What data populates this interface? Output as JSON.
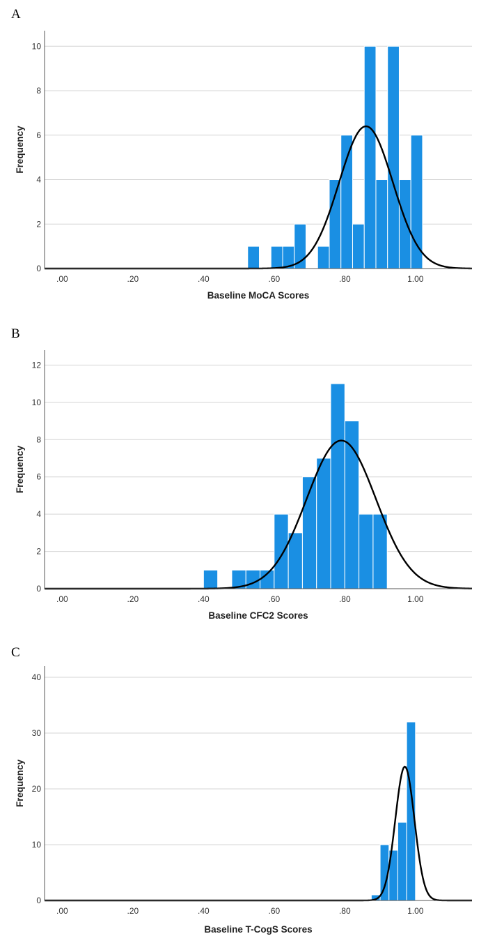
{
  "panels": [
    "A",
    "B",
    "C"
  ],
  "chart_data": [
    {
      "type": "bar",
      "subtype": "histogram",
      "panel": "A",
      "xlabel": "Baseline MoCA Scores",
      "ylabel": "Frequency",
      "xlim": [
        -0.05,
        1.16
      ],
      "ylim": [
        0,
        10.7
      ],
      "yticks": [
        0,
        2,
        4,
        6,
        8,
        10
      ],
      "ytick_labels": [
        "0",
        "2",
        "4",
        "6",
        "8",
        "10"
      ],
      "xticks": [
        0,
        0.2,
        0.4,
        0.6,
        0.8,
        1.0
      ],
      "xtick_labels": [
        ".00",
        ".20",
        ".40",
        ".60",
        ".80",
        "1.00"
      ],
      "grid": true,
      "bar_color": "#1a8fe3",
      "curve_color": "#000000",
      "bins": [
        {
          "start": 0.525,
          "end": 0.558,
          "count": 1
        },
        {
          "start": 0.591,
          "end": 0.624,
          "count": 1
        },
        {
          "start": 0.624,
          "end": 0.657,
          "count": 1
        },
        {
          "start": 0.657,
          "end": 0.69,
          "count": 2
        },
        {
          "start": 0.723,
          "end": 0.756,
          "count": 1
        },
        {
          "start": 0.756,
          "end": 0.789,
          "count": 4
        },
        {
          "start": 0.789,
          "end": 0.822,
          "count": 6
        },
        {
          "start": 0.822,
          "end": 0.855,
          "count": 2
        },
        {
          "start": 0.855,
          "end": 0.888,
          "count": 10
        },
        {
          "start": 0.888,
          "end": 0.921,
          "count": 4
        },
        {
          "start": 0.921,
          "end": 0.954,
          "count": 10
        },
        {
          "start": 0.954,
          "end": 0.987,
          "count": 4
        },
        {
          "start": 0.987,
          "end": 1.02,
          "count": 6
        }
      ],
      "normal_curve": {
        "mean": 0.86,
        "sd": 0.076,
        "peak": 6.4
      }
    },
    {
      "type": "bar",
      "subtype": "histogram",
      "panel": "B",
      "xlabel": "Baseline CFC2 Scores",
      "ylabel": "Frequency",
      "xlim": [
        -0.05,
        1.16
      ],
      "ylim": [
        0,
        12.8
      ],
      "yticks": [
        0,
        2,
        4,
        6,
        8,
        10,
        12
      ],
      "ytick_labels": [
        "0",
        "2",
        "4",
        "6",
        "8",
        "10",
        "12"
      ],
      "xticks": [
        0,
        0.2,
        0.4,
        0.6,
        0.8,
        1.0
      ],
      "xtick_labels": [
        ".00",
        ".20",
        ".40",
        ".60",
        ".80",
        "1.00"
      ],
      "grid": true,
      "bar_color": "#1a8fe3",
      "curve_color": "#000000",
      "bins": [
        {
          "start": 0.4,
          "end": 0.44,
          "count": 1
        },
        {
          "start": 0.48,
          "end": 0.52,
          "count": 1
        },
        {
          "start": 0.52,
          "end": 0.56,
          "count": 1
        },
        {
          "start": 0.56,
          "end": 0.6,
          "count": 1
        },
        {
          "start": 0.6,
          "end": 0.64,
          "count": 4
        },
        {
          "start": 0.64,
          "end": 0.68,
          "count": 3
        },
        {
          "start": 0.68,
          "end": 0.72,
          "count": 6
        },
        {
          "start": 0.72,
          "end": 0.76,
          "count": 7
        },
        {
          "start": 0.76,
          "end": 0.8,
          "count": 11
        },
        {
          "start": 0.8,
          "end": 0.84,
          "count": 9
        },
        {
          "start": 0.84,
          "end": 0.88,
          "count": 4
        },
        {
          "start": 0.88,
          "end": 0.92,
          "count": 4
        }
      ],
      "normal_curve": {
        "mean": 0.79,
        "sd": 0.098,
        "peak": 7.95
      }
    },
    {
      "type": "bar",
      "subtype": "histogram",
      "panel": "C",
      "xlabel": "Baseline T-CogS Scores",
      "ylabel": "Frequency",
      "xlim": [
        -0.05,
        1.16
      ],
      "ylim": [
        0,
        42
      ],
      "yticks": [
        0,
        10,
        20,
        30,
        40
      ],
      "ytick_labels": [
        "0",
        "10",
        "20",
        "30",
        "40"
      ],
      "xticks": [
        0,
        0.2,
        0.4,
        0.6,
        0.8,
        1.0
      ],
      "xtick_labels": [
        ".00",
        ".20",
        ".40",
        ".60",
        ".80",
        "1.00"
      ],
      "grid": true,
      "bar_color": "#1a8fe3",
      "curve_color": "#000000",
      "bins": [
        {
          "start": 0.875,
          "end": 0.9,
          "count": 1
        },
        {
          "start": 0.9,
          "end": 0.925,
          "count": 10
        },
        {
          "start": 0.925,
          "end": 0.95,
          "count": 9
        },
        {
          "start": 0.95,
          "end": 0.975,
          "count": 14
        },
        {
          "start": 0.975,
          "end": 1.0,
          "count": 32
        }
      ],
      "normal_curve": {
        "mean": 0.97,
        "sd": 0.027,
        "peak": 24
      }
    }
  ]
}
